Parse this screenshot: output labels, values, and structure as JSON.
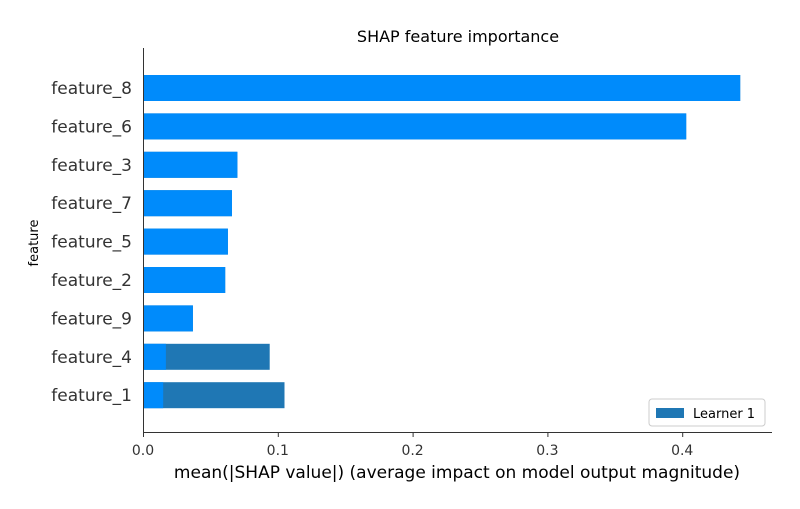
{
  "chart_data": {
    "type": "bar",
    "orientation": "horizontal",
    "title": "SHAP feature importance",
    "xlabel": "mean(|SHAP value|) (average impact on model output magnitude)",
    "ylabel": "feature",
    "xlim": [
      0,
      0.465
    ],
    "xticks": [
      0.0,
      0.1,
      0.2,
      0.3,
      0.4
    ],
    "xtick_labels": [
      "0.0",
      "0.1",
      "0.2",
      "0.3",
      "0.4"
    ],
    "categories": [
      "feature_8",
      "feature_6",
      "feature_3",
      "feature_7",
      "feature_5",
      "feature_2",
      "feature_9",
      "feature_4",
      "feature_1"
    ],
    "series": [
      {
        "name": "Learner 1",
        "color": "#1f77b4",
        "values": [
          0.443,
          0.403,
          0.07,
          0.066,
          0.063,
          0.061,
          0.037,
          0.094,
          0.105
        ]
      },
      {
        "name": "",
        "color": "#008bfb",
        "values": [
          0.443,
          0.403,
          0.07,
          0.066,
          0.063,
          0.061,
          0.037,
          0.017,
          0.015
        ]
      }
    ],
    "legend": {
      "position": "bottom-right",
      "entries": [
        "Learner 1"
      ]
    }
  }
}
